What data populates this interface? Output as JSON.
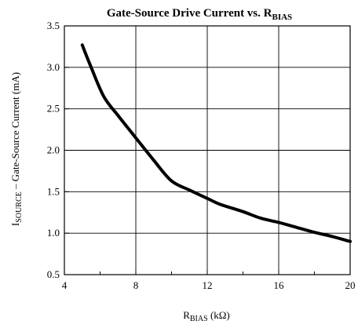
{
  "chart_data": {
    "type": "line",
    "title": {
      "main": "Gate-Source Drive Current vs. R",
      "sub": "BIAS"
    },
    "xlabel": {
      "main": "R",
      "sub": "BIAS",
      "unit": " (kΩ)"
    },
    "ylabel": {
      "main": "I",
      "sub": "SOURCE",
      "rest": " – Gate-Source Current (mA)"
    },
    "xlim": [
      4,
      20
    ],
    "ylim": [
      0.5,
      3.5
    ],
    "x_ticks": [
      4,
      8,
      12,
      16,
      20
    ],
    "x_tick_labels": [
      "4",
      "8",
      "12",
      "16",
      "20"
    ],
    "y_ticks": [
      0.5,
      1.0,
      1.5,
      2.0,
      2.5,
      3.0,
      3.5
    ],
    "y_tick_labels": [
      "0.5",
      "1.0",
      "1.5",
      "2.0",
      "2.5",
      "3.0",
      "3.5"
    ],
    "x_minor_step": 2,
    "grid": true,
    "series": [
      {
        "x": [
          5.0,
          5.5,
          6.2,
          7.0,
          8.0,
          9.0,
          10.0,
          11.0,
          12.0,
          12.7,
          14.0,
          15.0,
          16.0,
          17.0,
          18.0,
          19.0,
          20.0
        ],
        "y": [
          3.27,
          3.0,
          2.65,
          2.42,
          2.15,
          1.88,
          1.63,
          1.52,
          1.42,
          1.35,
          1.26,
          1.18,
          1.13,
          1.07,
          1.01,
          0.96,
          0.9
        ]
      }
    ]
  }
}
